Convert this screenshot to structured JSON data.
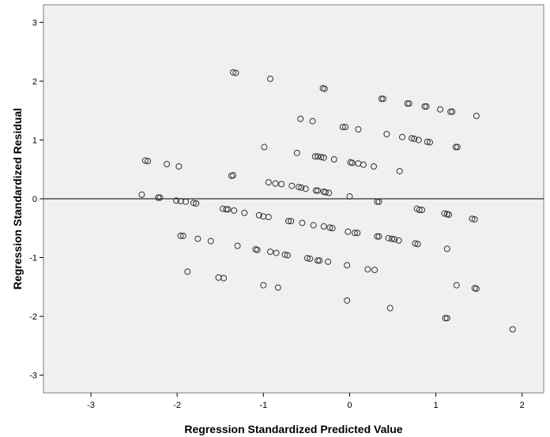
{
  "chart_data": {
    "type": "scatter",
    "xlabel": "Regression Standardized Predicted Value",
    "ylabel": "Regression Standardized Residual",
    "xlim": [
      -3.55,
      2.25
    ],
    "ylim": [
      -3.3,
      3.3
    ],
    "xticks": [
      -3,
      -2,
      -1,
      0,
      1,
      2
    ],
    "yticks": [
      -3,
      -2,
      -1,
      0,
      1,
      2,
      3
    ],
    "reference_line_y": 0,
    "grid": false,
    "colors": {
      "plot_background": "#f0f0f0",
      "marker_stroke": "#333333",
      "frame": "#7f7f7f"
    },
    "points": [
      [
        -1.35,
        2.15
      ],
      [
        -1.32,
        2.14
      ],
      [
        -0.92,
        2.04
      ],
      [
        -0.31,
        1.88
      ],
      [
        -0.29,
        1.87
      ],
      [
        0.37,
        1.7
      ],
      [
        0.39,
        1.7
      ],
      [
        0.67,
        1.62
      ],
      [
        0.69,
        1.62
      ],
      [
        0.87,
        1.57
      ],
      [
        0.89,
        1.57
      ],
      [
        1.05,
        1.52
      ],
      [
        1.17,
        1.48
      ],
      [
        1.19,
        1.48
      ],
      [
        1.47,
        1.41
      ],
      [
        -0.57,
        1.36
      ],
      [
        -0.43,
        1.32
      ],
      [
        -0.08,
        1.22
      ],
      [
        -0.05,
        1.22
      ],
      [
        0.1,
        1.18
      ],
      [
        0.43,
        1.1
      ],
      [
        0.61,
        1.05
      ],
      [
        0.72,
        1.03
      ],
      [
        0.75,
        1.02
      ],
      [
        0.8,
        1.0
      ],
      [
        0.9,
        0.97
      ],
      [
        0.93,
        0.96
      ],
      [
        1.23,
        0.88
      ],
      [
        1.25,
        0.88
      ],
      [
        -0.99,
        0.88
      ],
      [
        -0.61,
        0.78
      ],
      [
        -0.4,
        0.72
      ],
      [
        -0.37,
        0.72
      ],
      [
        -0.33,
        0.71
      ],
      [
        -0.3,
        0.7
      ],
      [
        -0.18,
        0.67
      ],
      [
        0.01,
        0.62
      ],
      [
        0.03,
        0.61
      ],
      [
        0.1,
        0.6
      ],
      [
        0.16,
        0.58
      ],
      [
        0.28,
        0.55
      ],
      [
        0.58,
        0.47
      ],
      [
        -2.37,
        0.65
      ],
      [
        -2.34,
        0.64
      ],
      [
        -2.12,
        0.59
      ],
      [
        -1.98,
        0.55
      ],
      [
        -1.37,
        0.39
      ],
      [
        -1.35,
        0.4
      ],
      [
        -0.94,
        0.28
      ],
      [
        -0.86,
        0.26
      ],
      [
        -0.79,
        0.25
      ],
      [
        -0.67,
        0.22
      ],
      [
        -0.59,
        0.2
      ],
      [
        -0.56,
        0.19
      ],
      [
        -0.51,
        0.17
      ],
      [
        -0.39,
        0.14
      ],
      [
        -0.37,
        0.14
      ],
      [
        -0.3,
        0.12
      ],
      [
        -0.28,
        0.11
      ],
      [
        -0.24,
        0.1
      ],
      [
        0.0,
        0.04
      ],
      [
        -2.41,
        0.07
      ],
      [
        -2.22,
        0.02
      ],
      [
        -2.2,
        0.02
      ],
      [
        -2.01,
        -0.03
      ],
      [
        -1.96,
        -0.04
      ],
      [
        -1.9,
        -0.05
      ],
      [
        -1.81,
        -0.07
      ],
      [
        -1.78,
        -0.08
      ],
      [
        -1.47,
        -0.17
      ],
      [
        -1.43,
        -0.18
      ],
      [
        -1.41,
        -0.18
      ],
      [
        -1.34,
        -0.2
      ],
      [
        -1.22,
        -0.24
      ],
      [
        -1.05,
        -0.28
      ],
      [
        -1.0,
        -0.3
      ],
      [
        -0.94,
        -0.31
      ],
      [
        -0.71,
        -0.38
      ],
      [
        -0.68,
        -0.38
      ],
      [
        -0.55,
        -0.41
      ],
      [
        -0.42,
        -0.45
      ],
      [
        -0.3,
        -0.47
      ],
      [
        -0.23,
        -0.49
      ],
      [
        -0.2,
        -0.5
      ],
      [
        0.32,
        -0.05
      ],
      [
        0.34,
        -0.05
      ],
      [
        0.78,
        -0.17
      ],
      [
        0.81,
        -0.19
      ],
      [
        0.84,
        -0.19
      ],
      [
        1.1,
        -0.25
      ],
      [
        1.13,
        -0.26
      ],
      [
        1.15,
        -0.27
      ],
      [
        1.42,
        -0.34
      ],
      [
        1.45,
        -0.35
      ],
      [
        -0.02,
        -0.56
      ],
      [
        0.06,
        -0.58
      ],
      [
        0.09,
        -0.58
      ],
      [
        0.32,
        -0.64
      ],
      [
        0.34,
        -0.64
      ],
      [
        0.45,
        -0.67
      ],
      [
        0.49,
        -0.68
      ],
      [
        0.52,
        -0.69
      ],
      [
        0.57,
        -0.71
      ],
      [
        0.76,
        -0.76
      ],
      [
        0.79,
        -0.77
      ],
      [
        -1.96,
        -0.63
      ],
      [
        -1.93,
        -0.63
      ],
      [
        -1.76,
        -0.68
      ],
      [
        -1.61,
        -0.72
      ],
      [
        -1.3,
        -0.8
      ],
      [
        -1.09,
        -0.86
      ],
      [
        -1.07,
        -0.87
      ],
      [
        -0.92,
        -0.9
      ],
      [
        -0.85,
        -0.92
      ],
      [
        -0.75,
        -0.95
      ],
      [
        -0.72,
        -0.96
      ],
      [
        -0.49,
        -1.01
      ],
      [
        -0.46,
        -1.02
      ],
      [
        -0.37,
        -1.05
      ],
      [
        -0.35,
        -1.05
      ],
      [
        -0.25,
        -1.07
      ],
      [
        -0.03,
        -1.13
      ],
      [
        1.13,
        -0.85
      ],
      [
        -1.88,
        -1.24
      ],
      [
        -1.52,
        -1.34
      ],
      [
        -1.46,
        -1.35
      ],
      [
        -1.0,
        -1.47
      ],
      [
        -0.83,
        -1.51
      ],
      [
        0.21,
        -1.2
      ],
      [
        0.29,
        -1.21
      ],
      [
        1.24,
        -1.47
      ],
      [
        1.45,
        -1.52
      ],
      [
        1.47,
        -1.53
      ],
      [
        -0.03,
        -1.73
      ],
      [
        0.47,
        -1.86
      ],
      [
        1.11,
        -2.03
      ],
      [
        1.13,
        -2.03
      ],
      [
        1.89,
        -2.22
      ]
    ]
  }
}
